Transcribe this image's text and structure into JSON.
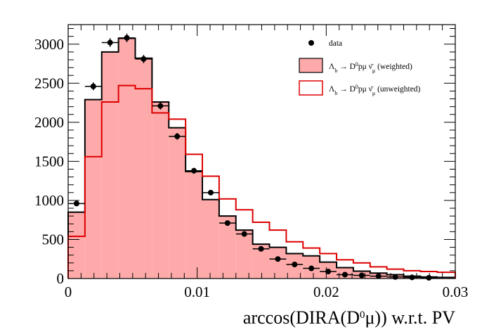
{
  "chart_data": {
    "type": "histogram",
    "xlabel": "arccos(DIRA(D⁰μ)) w.r.t. PV",
    "xlim": [
      0,
      0.03
    ],
    "ylim": [
      0,
      3250
    ],
    "x_ticks": [
      0,
      0.01,
      0.02,
      0.03
    ],
    "x_tick_labels": [
      "0",
      "0.01",
      "0.02",
      "0.03"
    ],
    "y_ticks": [
      0,
      500,
      1000,
      1500,
      2000,
      2500,
      3000
    ],
    "y_tick_labels": [
      "0",
      "500",
      "1000",
      "1500",
      "2000",
      "2500",
      "3000"
    ],
    "bin_edges": [
      0,
      0.0013,
      0.0026,
      0.0039,
      0.0052,
      0.0065,
      0.0078,
      0.0091,
      0.0104,
      0.0117,
      0.013,
      0.0143,
      0.0156,
      0.0169,
      0.0182,
      0.0195,
      0.0208,
      0.0221,
      0.0234,
      0.0247,
      0.026,
      0.0273,
      0.0286,
      0.03
    ],
    "series": [
      {
        "name": "Λb → D⁰pμ ν̄μ (weighted)",
        "style": "filled-hist",
        "fill": "#ffaaaa",
        "stroke": "#000000",
        "values": [
          850,
          2290,
          2900,
          3075,
          2820,
          2260,
          1930,
          1370,
          1010,
          800,
          620,
          440,
          400,
          320,
          290,
          210,
          140,
          95,
          70,
          50,
          30,
          20,
          15
        ]
      },
      {
        "name": "Λb → D⁰pμ ν̄μ (unweighted)",
        "style": "step",
        "stroke": "#dd0000",
        "values": [
          540,
          1560,
          2260,
          2470,
          2430,
          2120,
          2040,
          1590,
          1310,
          1020,
          880,
          720,
          620,
          470,
          390,
          320,
          240,
          200,
          150,
          120,
          100,
          90,
          80
        ]
      },
      {
        "name": "data",
        "style": "points",
        "color": "#000000",
        "x": [
          0.00065,
          0.00195,
          0.00325,
          0.00455,
          0.00585,
          0.00715,
          0.00845,
          0.00975,
          0.01105,
          0.01235,
          0.01365,
          0.01495,
          0.01625,
          0.01755,
          0.01885,
          0.02015,
          0.02145,
          0.02275,
          0.02405,
          0.02535,
          0.02665,
          0.02795
        ],
        "y": [
          960,
          2460,
          3020,
          3080,
          2810,
          2210,
          1820,
          1380,
          1100,
          710,
          570,
          380,
          250,
          180,
          130,
          90,
          50,
          40,
          30,
          20,
          15,
          10
        ],
        "yerr": [
          31,
          50,
          55,
          55,
          53,
          47,
          43,
          37,
          33,
          27,
          24,
          19,
          16,
          13,
          11,
          9,
          7,
          6,
          5,
          4,
          4,
          3
        ]
      }
    ],
    "legend": {
      "placement": "top-right",
      "entries": [
        {
          "label": "data",
          "marker": "point"
        },
        {
          "label": "Λb → D⁰pμ ν̄μ (weighted)",
          "marker": "filled-box"
        },
        {
          "label": "Λb → D⁰pμ ν̄μ (unweighted)",
          "marker": "open-box"
        }
      ]
    },
    "grid": false
  }
}
